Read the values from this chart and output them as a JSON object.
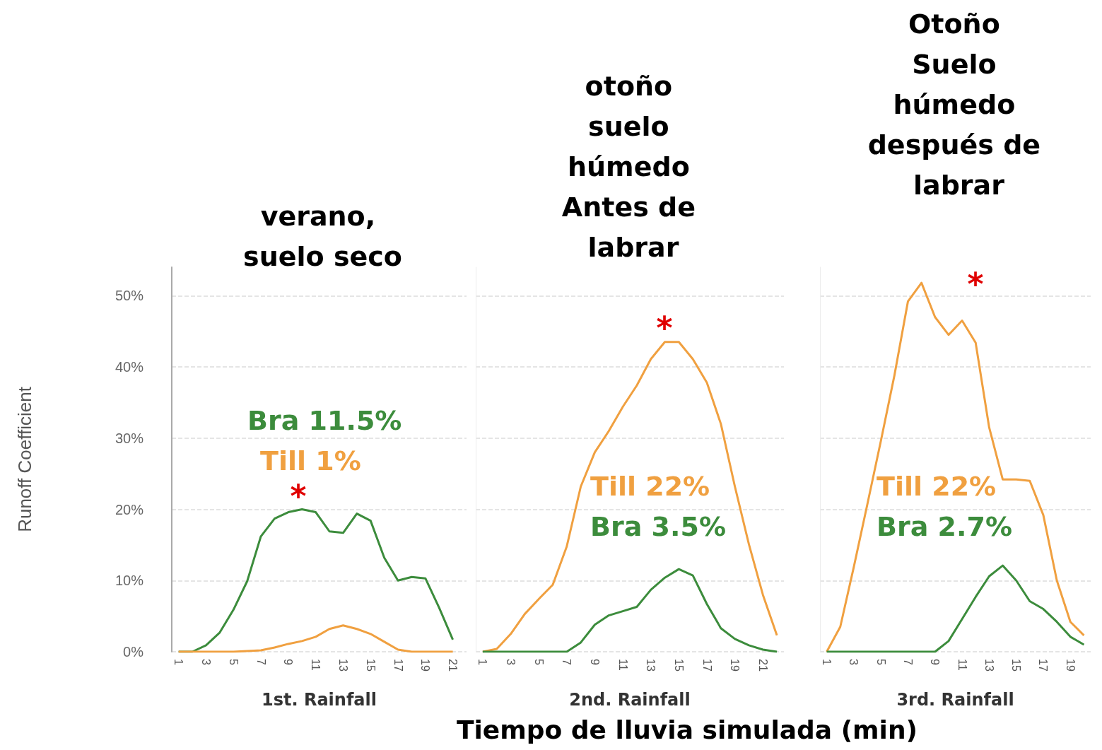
{
  "chart_data": [
    {
      "type": "line",
      "title": "verano, suelo seco",
      "xlabel": "1st. Rainfall",
      "ylabel": "Runoff Coefficient",
      "xlim": [
        0.5,
        22
      ],
      "xticks": [
        1,
        3,
        5,
        7,
        9,
        11,
        13,
        15,
        17,
        19,
        21
      ],
      "ylim": [
        0,
        54
      ],
      "yticks": [
        {
          "value": 0,
          "label": "0%"
        },
        {
          "value": 10,
          "label": "10%"
        },
        {
          "value": 20,
          "label": "20%"
        },
        {
          "value": 30,
          "label": "30%"
        },
        {
          "value": 40,
          "label": "40%"
        },
        {
          "value": 50,
          "label": "50%"
        }
      ],
      "grid": "y",
      "x": [
        1,
        2,
        3,
        4,
        5,
        6,
        7,
        8,
        9,
        10,
        11,
        12,
        13,
        14,
        15,
        16,
        17,
        18,
        19,
        20,
        21
      ],
      "series": [
        {
          "color": "#3c8c3c",
          "values": [
            0,
            0,
            0.9,
            2.7,
            5.9,
            9.9,
            16.2,
            18.7,
            19.6,
            20.0,
            19.6,
            16.9,
            16.7,
            19.4,
            18.4,
            13.2,
            10.0,
            10.5,
            10.3,
            6.2,
            1.7
          ]
        },
        {
          "color": "#f0a040",
          "values": [
            0,
            0,
            0,
            0,
            0,
            0.1,
            0.2,
            0.6,
            1.1,
            1.5,
            2.1,
            3.2,
            3.7,
            3.2,
            2.5,
            1.4,
            0.3,
            0,
            0,
            0,
            0
          ]
        }
      ],
      "annotations": [
        "Bra 11.5%",
        "Till 1%",
        "*"
      ]
    },
    {
      "type": "line",
      "title": "otoño suelo húmedo Antes de labrar",
      "xlabel": "2nd. Rainfall",
      "xlim": [
        0.5,
        22.5
      ],
      "xticks": [
        1,
        3,
        5,
        7,
        9,
        11,
        13,
        15,
        17,
        19,
        21
      ],
      "ylim": [
        0,
        54
      ],
      "yticks": [
        {
          "value": 0,
          "label": null
        },
        {
          "value": 10,
          "label": null
        },
        {
          "value": 20,
          "label": null
        },
        {
          "value": 30,
          "label": null
        },
        {
          "value": 40,
          "label": null
        },
        {
          "value": 50,
          "label": null
        }
      ],
      "grid": "y",
      "tick_labels": "x",
      "x": [
        1,
        2,
        3,
        4,
        5,
        6,
        7,
        8,
        9,
        10,
        11,
        12,
        13,
        14,
        15,
        16,
        17,
        18,
        19,
        20,
        21,
        22
      ],
      "series": [
        {
          "color": "#f0a040",
          "values": [
            0,
            0.4,
            2.5,
            5.3,
            7.4,
            9.4,
            14.8,
            23.2,
            28.0,
            31.0,
            34.4,
            37.4,
            41.1,
            43.5,
            43.5,
            41.1,
            37.8,
            32.0,
            23.2,
            15.1,
            8.0,
            2.3
          ]
        },
        {
          "color": "#3c8c3c",
          "values": [
            0,
            0,
            0,
            0,
            0,
            0,
            0,
            1.3,
            3.8,
            5.1,
            5.7,
            6.3,
            8.7,
            10.4,
            11.6,
            10.7,
            6.7,
            3.3,
            1.8,
            0.9,
            0.3,
            0
          ]
        }
      ],
      "annotations": [
        "Till 22%",
        "Bra 3.5%",
        "Tiempo de lluvia simulada (min)",
        "*"
      ]
    },
    {
      "type": "line",
      "title": "Otoño Suelo húmedo después de labrar",
      "xlabel": "3rd. Rainfall",
      "xlim": [
        0.5,
        20.5
      ],
      "xticks": [
        1,
        3,
        5,
        7,
        9,
        11,
        13,
        15,
        17,
        19
      ],
      "ylim": [
        0,
        54
      ],
      "yticks": [
        {
          "value": 0,
          "label": null
        },
        {
          "value": 10,
          "label": null
        },
        {
          "value": 20,
          "label": null
        },
        {
          "value": 30,
          "label": null
        },
        {
          "value": 40,
          "label": null
        },
        {
          "value": 50,
          "label": null
        }
      ],
      "grid": "y",
      "tick_labels": "x",
      "x": [
        1,
        2,
        3,
        4,
        5,
        6,
        7,
        8,
        9,
        10,
        11,
        12,
        13,
        14,
        15,
        16,
        17,
        18,
        19,
        20
      ],
      "series": [
        {
          "color": "#f0a040",
          "values": [
            0,
            3.5,
            11.9,
            20.7,
            29.6,
            38.8,
            49.2,
            51.8,
            47.0,
            44.5,
            46.5,
            43.4,
            31.5,
            24.2,
            24.2,
            24.0,
            19.2,
            10.0,
            4.2,
            2.3
          ]
        },
        {
          "color": "#3c8c3c",
          "values": [
            0,
            0,
            0,
            0,
            0,
            0,
            0,
            0,
            0,
            1.5,
            4.6,
            7.7,
            10.6,
            12.1,
            10.0,
            7.1,
            6.0,
            4.2,
            2.1,
            1.0
          ]
        }
      ],
      "annotations": [
        "Till 22%",
        "Bra 2.7%",
        "*"
      ]
    }
  ]
}
